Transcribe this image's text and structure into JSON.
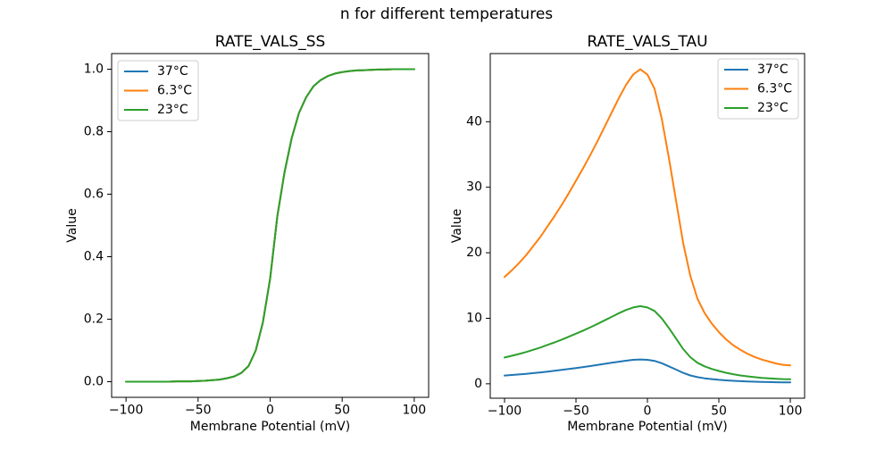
{
  "figure": {
    "suptitle": "n for different temperatures",
    "background": "#ffffff",
    "text_color": "#000000"
  },
  "chart_data": [
    {
      "type": "line",
      "title": "RATE_VALS_SS",
      "xlabel": "Membrane Potential (mV)",
      "ylabel": "Value",
      "xlim": [
        -110,
        110
      ],
      "ylim": [
        -0.05,
        1.05
      ],
      "grid": false,
      "legend_position": "upper left",
      "xticks": [
        -100,
        -50,
        0,
        50,
        100
      ],
      "xtick_labels": [
        "−100",
        "−50",
        "0",
        "50",
        "100"
      ],
      "yticks": [
        0,
        0.2,
        0.4,
        0.6,
        0.8,
        1.0
      ],
      "ytick_labels": [
        "0.0",
        "0.2",
        "0.4",
        "0.6",
        "0.8",
        "1.0"
      ],
      "x": [
        -100,
        -95,
        -90,
        -85,
        -80,
        -75,
        -70,
        -65,
        -60,
        -55,
        -50,
        -45,
        -40,
        -35,
        -30,
        -25,
        -20,
        -15,
        -10,
        -5,
        0,
        5,
        10,
        15,
        20,
        25,
        30,
        35,
        40,
        45,
        50,
        55,
        60,
        65,
        70,
        75,
        80,
        85,
        90,
        95,
        100
      ],
      "series": [
        {
          "name": "37°C",
          "color": "#1f77b4",
          "values": [
            0,
            0,
            0,
            0,
            0,
            0,
            0,
            0.001,
            0.001,
            0.001,
            0.002,
            0.003,
            0.005,
            0.007,
            0.011,
            0.017,
            0.028,
            0.05,
            0.1,
            0.19,
            0.33,
            0.53,
            0.67,
            0.78,
            0.86,
            0.91,
            0.945,
            0.965,
            0.978,
            0.986,
            0.991,
            0.994,
            0.996,
            0.997,
            0.998,
            0.999,
            0.999,
            1,
            1,
            1,
            1
          ]
        },
        {
          "name": "6.3°C",
          "color": "#ff7f0e",
          "values": [
            0,
            0,
            0,
            0,
            0,
            0,
            0,
            0.001,
            0.001,
            0.001,
            0.002,
            0.003,
            0.005,
            0.007,
            0.011,
            0.017,
            0.028,
            0.05,
            0.1,
            0.19,
            0.33,
            0.53,
            0.67,
            0.78,
            0.86,
            0.91,
            0.945,
            0.965,
            0.978,
            0.986,
            0.991,
            0.994,
            0.996,
            0.997,
            0.998,
            0.999,
            0.999,
            1,
            1,
            1,
            1
          ]
        },
        {
          "name": "23°C",
          "color": "#2ca02c",
          "values": [
            0,
            0,
            0,
            0,
            0,
            0,
            0,
            0.001,
            0.001,
            0.001,
            0.002,
            0.003,
            0.005,
            0.007,
            0.011,
            0.017,
            0.028,
            0.05,
            0.1,
            0.19,
            0.33,
            0.53,
            0.67,
            0.78,
            0.86,
            0.91,
            0.945,
            0.965,
            0.978,
            0.986,
            0.991,
            0.994,
            0.996,
            0.997,
            0.998,
            0.999,
            0.999,
            1,
            1,
            1,
            1
          ]
        }
      ]
    },
    {
      "type": "line",
      "title": "RATE_VALS_TAU",
      "xlabel": "Membrane Potential (mV)",
      "ylabel": "Value",
      "xlim": [
        -110,
        110
      ],
      "ylim": [
        -2.2,
        50.4
      ],
      "grid": false,
      "legend_position": "upper right",
      "xticks": [
        -100,
        -50,
        0,
        50,
        100
      ],
      "xtick_labels": [
        "−100",
        "−50",
        "0",
        "50",
        "100"
      ],
      "yticks": [
        0,
        10,
        20,
        30,
        40
      ],
      "ytick_labels": [
        "0",
        "10",
        "20",
        "30",
        "40"
      ],
      "x": [
        -100,
        -95,
        -90,
        -85,
        -80,
        -75,
        -70,
        -65,
        -60,
        -55,
        -50,
        -45,
        -40,
        -35,
        -30,
        -25,
        -20,
        -15,
        -10,
        -5,
        0,
        5,
        10,
        15,
        20,
        25,
        30,
        35,
        40,
        45,
        50,
        55,
        60,
        65,
        70,
        75,
        80,
        85,
        90,
        95,
        100
      ],
      "series": [
        {
          "name": "37°C",
          "color": "#1f77b4",
          "values": [
            1.26,
            1.34,
            1.43,
            1.52,
            1.63,
            1.74,
            1.86,
            1.98,
            2.12,
            2.26,
            2.4,
            2.55,
            2.71,
            2.87,
            3.04,
            3.21,
            3.38,
            3.53,
            3.66,
            3.72,
            3.66,
            3.49,
            3.14,
            2.67,
            2.17,
            1.67,
            1.28,
            1.01,
            0.84,
            0.71,
            0.61,
            0.53,
            0.46,
            0.4,
            0.36,
            0.32,
            0.29,
            0.26,
            0.24,
            0.22,
            0.22
          ]
        },
        {
          "name": "6.3°C",
          "color": "#ff7f0e",
          "values": [
            16.3,
            17.3,
            18.4,
            19.6,
            21.0,
            22.4,
            24.0,
            25.6,
            27.3,
            29.1,
            31.0,
            32.9,
            34.9,
            37.0,
            39.2,
            41.4,
            43.6,
            45.6,
            47.2,
            48.0,
            47.2,
            45.0,
            40.5,
            34.5,
            28.0,
            21.5,
            16.5,
            13.0,
            10.8,
            9.2,
            7.9,
            6.8,
            5.9,
            5.2,
            4.6,
            4.1,
            3.7,
            3.4,
            3.1,
            2.9,
            2.8
          ]
        },
        {
          "name": "23°C",
          "color": "#2ca02c",
          "values": [
            4.02,
            4.27,
            4.54,
            4.84,
            5.19,
            5.53,
            5.93,
            6.32,
            6.74,
            7.19,
            7.65,
            8.12,
            8.62,
            9.14,
            9.68,
            10.22,
            10.77,
            11.26,
            11.65,
            11.85,
            11.65,
            11.11,
            10.0,
            8.52,
            6.91,
            5.31,
            4.07,
            3.21,
            2.67,
            2.27,
            1.95,
            1.68,
            1.46,
            1.28,
            1.14,
            1.01,
            0.91,
            0.84,
            0.77,
            0.72,
            0.69
          ]
        }
      ]
    }
  ]
}
